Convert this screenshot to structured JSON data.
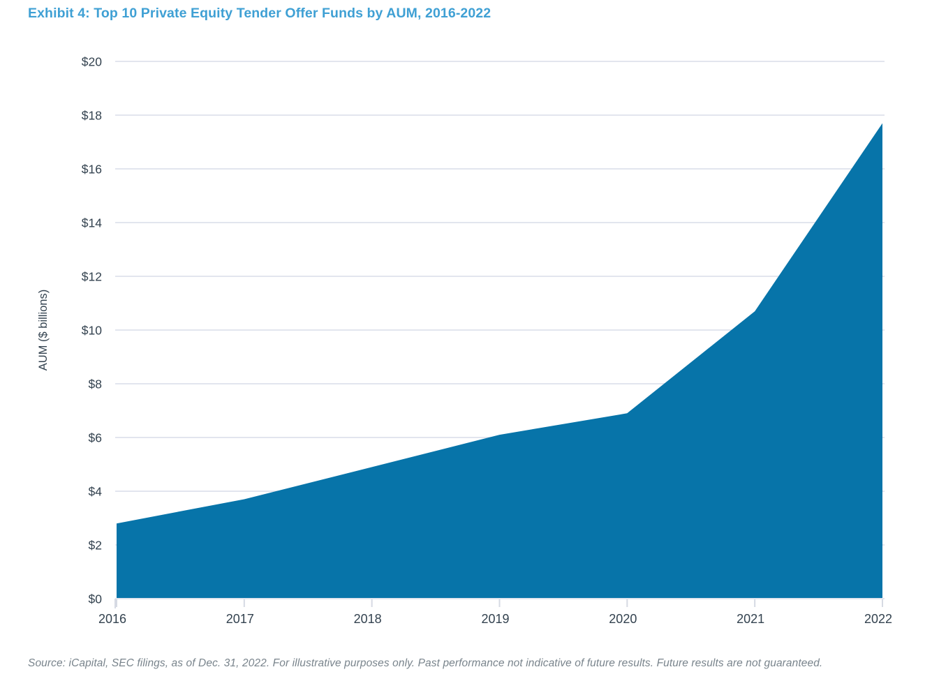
{
  "page": {
    "title": "Exhibit 4: Top 10 Private Equity Tender Offer Funds by AUM, 2016-2022",
    "source_note": "Source: iCapital, SEC filings, as of Dec. 31, 2022. For illustrative purposes only. Past performance not indicative of future results. Future results are not guaranteed."
  },
  "colors": {
    "title_text": "#3FA0D4",
    "area_fill": "#0774A9",
    "axis_text": "#33424F",
    "gridline": "#E2E5EE",
    "tick_mark": "#D6DAE3",
    "source_text": "#79848C"
  },
  "chart_data": {
    "type": "area",
    "title": "Exhibit 4: Top 10 Private Equity Tender Offer Funds by AUM, 2016-2022",
    "categories": [
      "2016",
      "2017",
      "2018",
      "2019",
      "2020",
      "2021",
      "2022"
    ],
    "series": [
      {
        "name": "Top 10 Private Equity Tender Offer Funds AUM",
        "values": [
          2.8,
          3.7,
          4.9,
          6.1,
          6.9,
          10.7,
          17.7
        ]
      }
    ],
    "xlabel": "",
    "ylabel": "AUM ($ billions)",
    "ylim": [
      0,
      20
    ],
    "ytick_step": 2,
    "ytick_labels": [
      "$0",
      "$2",
      "$4",
      "$6",
      "$8",
      "$10",
      "$12",
      "$14",
      "$16",
      "$18",
      "$20"
    ],
    "grid": "horizontal",
    "legend": "none",
    "units": "USD billions"
  }
}
